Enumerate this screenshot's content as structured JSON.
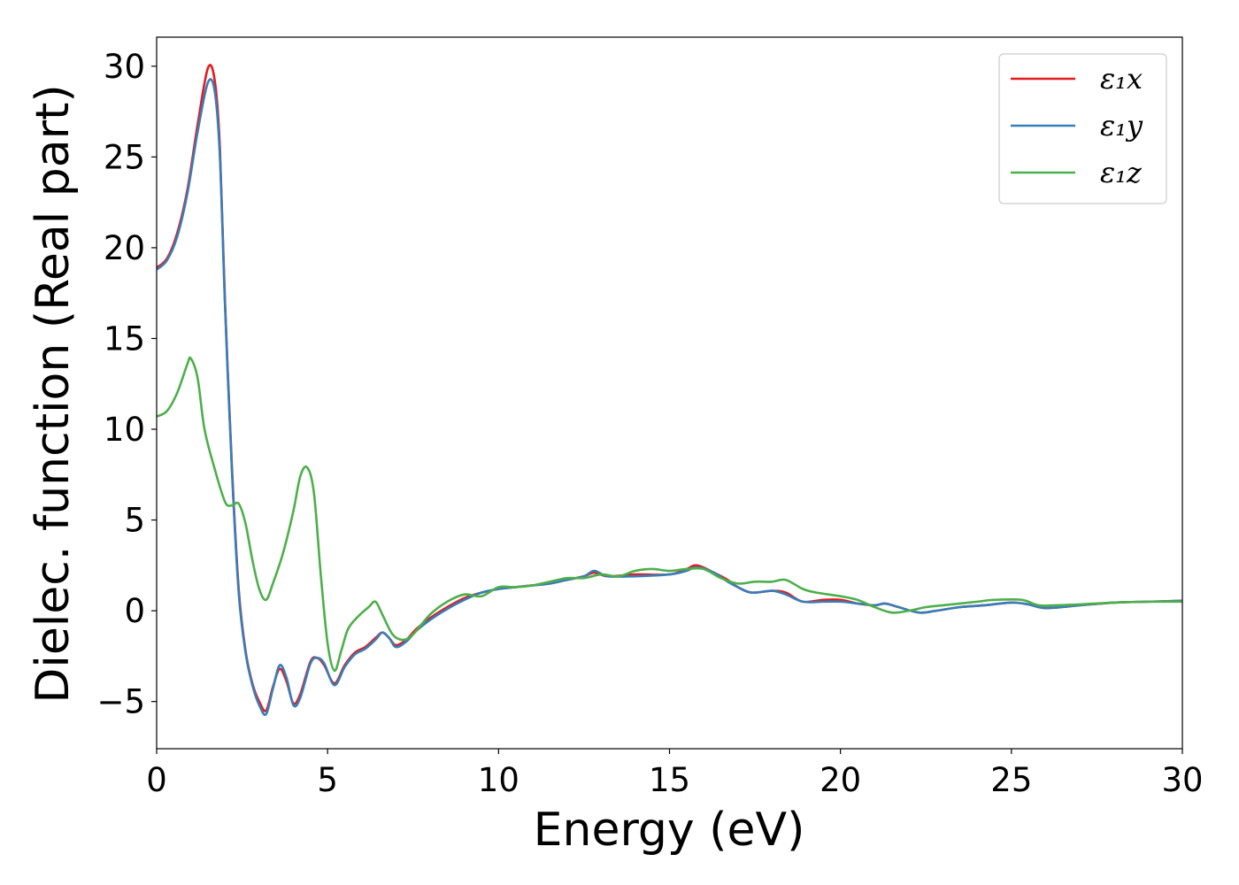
{
  "chart_data": {
    "type": "line",
    "title": "",
    "xlabel": "Energy (eV)",
    "ylabel": "Dielec. function (Real part)",
    "xlim": [
      0,
      30
    ],
    "ylim": [
      -7.6,
      31.6
    ],
    "xticks": [
      0,
      5,
      10,
      15,
      20,
      25,
      30
    ],
    "xtick_labels": [
      "0",
      "5",
      "10",
      "15",
      "20",
      "25",
      "30"
    ],
    "yticks": [
      -5,
      0,
      5,
      10,
      15,
      20,
      25,
      30
    ],
    "ytick_labels": [
      "−5",
      "0",
      "5",
      "10",
      "15",
      "20",
      "25",
      "30"
    ],
    "grid": false,
    "legend_position": "top-right",
    "series": [
      {
        "name": "ε₁x",
        "color": "#e41a1c",
        "points": [
          [
            0,
            18.9
          ],
          [
            0.3,
            19.4
          ],
          [
            0.6,
            20.8
          ],
          [
            0.9,
            23.2
          ],
          [
            1.2,
            26.8
          ],
          [
            1.5,
            29.9
          ],
          [
            1.7,
            29.2
          ],
          [
            1.85,
            25.5
          ],
          [
            2.0,
            17.0
          ],
          [
            2.2,
            8.0
          ],
          [
            2.4,
            1.2
          ],
          [
            2.6,
            -2.2
          ],
          [
            2.8,
            -4.0
          ],
          [
            3.0,
            -5.0
          ],
          [
            3.2,
            -5.5
          ],
          [
            3.4,
            -4.2
          ],
          [
            3.6,
            -3.2
          ],
          [
            3.8,
            -3.9
          ],
          [
            4.0,
            -5.1
          ],
          [
            4.2,
            -4.6
          ],
          [
            4.5,
            -2.8
          ],
          [
            4.7,
            -2.6
          ],
          [
            4.9,
            -3.0
          ],
          [
            5.2,
            -4.0
          ],
          [
            5.5,
            -3.0
          ],
          [
            5.8,
            -2.3
          ],
          [
            6.1,
            -2.0
          ],
          [
            6.4,
            -1.5
          ],
          [
            6.6,
            -1.2
          ],
          [
            6.8,
            -1.5
          ],
          [
            7.0,
            -1.9
          ],
          [
            7.3,
            -1.6
          ],
          [
            7.6,
            -1.0
          ],
          [
            8.0,
            -0.4
          ],
          [
            8.5,
            0.2
          ],
          [
            9.0,
            0.7
          ],
          [
            9.5,
            1.0
          ],
          [
            10.0,
            1.2
          ],
          [
            10.5,
            1.3
          ],
          [
            11.0,
            1.4
          ],
          [
            11.5,
            1.5
          ],
          [
            12.0,
            1.7
          ],
          [
            12.5,
            1.9
          ],
          [
            12.8,
            2.1
          ],
          [
            13.2,
            1.9
          ],
          [
            14.0,
            2.0
          ],
          [
            15.0,
            2.0
          ],
          [
            15.5,
            2.3
          ],
          [
            15.8,
            2.5
          ],
          [
            16.3,
            2.1
          ],
          [
            16.7,
            1.7
          ],
          [
            17.0,
            1.3
          ],
          [
            17.4,
            1.0
          ],
          [
            18.0,
            1.1
          ],
          [
            18.4,
            1.0
          ],
          [
            18.9,
            0.5
          ],
          [
            19.5,
            0.6
          ],
          [
            20.0,
            0.6
          ],
          [
            20.5,
            0.4
          ],
          [
            21.0,
            0.3
          ],
          [
            21.3,
            0.4
          ],
          [
            21.7,
            0.2
          ],
          [
            22.3,
            -0.1
          ],
          [
            22.8,
            0.0
          ],
          [
            23.5,
            0.2
          ],
          [
            24.2,
            0.3
          ],
          [
            25.0,
            0.45
          ],
          [
            25.5,
            0.35
          ],
          [
            26.0,
            0.15
          ],
          [
            27.0,
            0.3
          ],
          [
            28.0,
            0.45
          ],
          [
            29.0,
            0.5
          ],
          [
            30,
            0.55
          ]
        ]
      },
      {
        "name": "ε₁y",
        "color": "#377eb8",
        "points": [
          [
            0,
            18.8
          ],
          [
            0.3,
            19.3
          ],
          [
            0.6,
            20.6
          ],
          [
            0.9,
            23.0
          ],
          [
            1.2,
            26.4
          ],
          [
            1.5,
            29.1
          ],
          [
            1.7,
            28.6
          ],
          [
            1.85,
            25.0
          ],
          [
            2.0,
            16.8
          ],
          [
            2.2,
            7.8
          ],
          [
            2.4,
            1.0
          ],
          [
            2.6,
            -2.3
          ],
          [
            2.8,
            -4.1
          ],
          [
            3.0,
            -5.2
          ],
          [
            3.2,
            -5.7
          ],
          [
            3.4,
            -4.3
          ],
          [
            3.6,
            -3.0
          ],
          [
            3.8,
            -3.7
          ],
          [
            4.0,
            -5.2
          ],
          [
            4.2,
            -4.8
          ],
          [
            4.5,
            -2.9
          ],
          [
            4.7,
            -2.6
          ],
          [
            4.9,
            -2.9
          ],
          [
            5.2,
            -4.1
          ],
          [
            5.5,
            -3.1
          ],
          [
            5.8,
            -2.4
          ],
          [
            6.1,
            -2.1
          ],
          [
            6.4,
            -1.6
          ],
          [
            6.6,
            -1.2
          ],
          [
            6.8,
            -1.5
          ],
          [
            7.0,
            -2.0
          ],
          [
            7.3,
            -1.7
          ],
          [
            7.6,
            -1.1
          ],
          [
            8.0,
            -0.5
          ],
          [
            8.5,
            0.1
          ],
          [
            9.0,
            0.6
          ],
          [
            9.5,
            1.0
          ],
          [
            10.0,
            1.2
          ],
          [
            10.5,
            1.3
          ],
          [
            11.0,
            1.4
          ],
          [
            11.5,
            1.5
          ],
          [
            12.0,
            1.7
          ],
          [
            12.5,
            1.9
          ],
          [
            12.8,
            2.2
          ],
          [
            13.2,
            1.9
          ],
          [
            14.0,
            1.9
          ],
          [
            15.0,
            2.0
          ],
          [
            15.5,
            2.2
          ],
          [
            15.8,
            2.4
          ],
          [
            16.3,
            2.1
          ],
          [
            16.7,
            1.6
          ],
          [
            17.0,
            1.3
          ],
          [
            17.4,
            1.0
          ],
          [
            18.0,
            1.1
          ],
          [
            18.4,
            0.9
          ],
          [
            18.9,
            0.5
          ],
          [
            19.5,
            0.5
          ],
          [
            20.0,
            0.5
          ],
          [
            20.5,
            0.4
          ],
          [
            21.0,
            0.3
          ],
          [
            21.3,
            0.4
          ],
          [
            21.7,
            0.2
          ],
          [
            22.3,
            -0.1
          ],
          [
            22.8,
            0.0
          ],
          [
            23.5,
            0.2
          ],
          [
            24.2,
            0.3
          ],
          [
            25.0,
            0.45
          ],
          [
            25.5,
            0.35
          ],
          [
            26.0,
            0.15
          ],
          [
            27.0,
            0.3
          ],
          [
            28.0,
            0.45
          ],
          [
            29.0,
            0.5
          ],
          [
            30,
            0.55
          ]
        ]
      },
      {
        "name": "ε₁z",
        "color": "#4daf4a",
        "points": [
          [
            0,
            10.7
          ],
          [
            0.3,
            11.0
          ],
          [
            0.6,
            12.0
          ],
          [
            0.9,
            13.6
          ],
          [
            1.0,
            13.9
          ],
          [
            1.2,
            12.8
          ],
          [
            1.4,
            10.0
          ],
          [
            1.7,
            7.8
          ],
          [
            2.0,
            6.0
          ],
          [
            2.2,
            5.8
          ],
          [
            2.4,
            5.9
          ],
          [
            2.6,
            4.8
          ],
          [
            2.8,
            2.8
          ],
          [
            3.0,
            1.2
          ],
          [
            3.2,
            0.6
          ],
          [
            3.4,
            1.5
          ],
          [
            3.7,
            3.2
          ],
          [
            4.0,
            5.5
          ],
          [
            4.2,
            7.4
          ],
          [
            4.4,
            7.9
          ],
          [
            4.6,
            6.5
          ],
          [
            4.8,
            2.0
          ],
          [
            5.0,
            -1.8
          ],
          [
            5.2,
            -3.3
          ],
          [
            5.4,
            -2.2
          ],
          [
            5.6,
            -1.0
          ],
          [
            5.9,
            -0.3
          ],
          [
            6.2,
            0.2
          ],
          [
            6.4,
            0.5
          ],
          [
            6.6,
            -0.2
          ],
          [
            6.9,
            -1.3
          ],
          [
            7.2,
            -1.6
          ],
          [
            7.5,
            -1.3
          ],
          [
            8.0,
            -0.2
          ],
          [
            8.5,
            0.5
          ],
          [
            9.0,
            0.9
          ],
          [
            9.5,
            0.8
          ],
          [
            10.0,
            1.3
          ],
          [
            10.5,
            1.3
          ],
          [
            11.0,
            1.4
          ],
          [
            11.5,
            1.6
          ],
          [
            12.0,
            1.8
          ],
          [
            12.5,
            1.8
          ],
          [
            13.0,
            2.0
          ],
          [
            13.5,
            1.9
          ],
          [
            14.0,
            2.2
          ],
          [
            14.5,
            2.3
          ],
          [
            15.0,
            2.2
          ],
          [
            15.5,
            2.3
          ],
          [
            16.0,
            2.3
          ],
          [
            16.5,
            1.8
          ],
          [
            17.0,
            1.5
          ],
          [
            17.5,
            1.6
          ],
          [
            18.0,
            1.6
          ],
          [
            18.4,
            1.7
          ],
          [
            18.9,
            1.2
          ],
          [
            19.3,
            1.0
          ],
          [
            20.0,
            0.8
          ],
          [
            20.5,
            0.6
          ],
          [
            21.0,
            0.2
          ],
          [
            21.5,
            -0.1
          ],
          [
            22.0,
            0.0
          ],
          [
            22.5,
            0.2
          ],
          [
            23.0,
            0.3
          ],
          [
            23.5,
            0.4
          ],
          [
            24.0,
            0.5
          ],
          [
            24.5,
            0.6
          ],
          [
            25.3,
            0.6
          ],
          [
            25.8,
            0.3
          ],
          [
            26.3,
            0.3
          ],
          [
            27.0,
            0.35
          ],
          [
            28.0,
            0.45
          ],
          [
            29.0,
            0.5
          ],
          [
            30,
            0.5
          ]
        ]
      }
    ]
  }
}
